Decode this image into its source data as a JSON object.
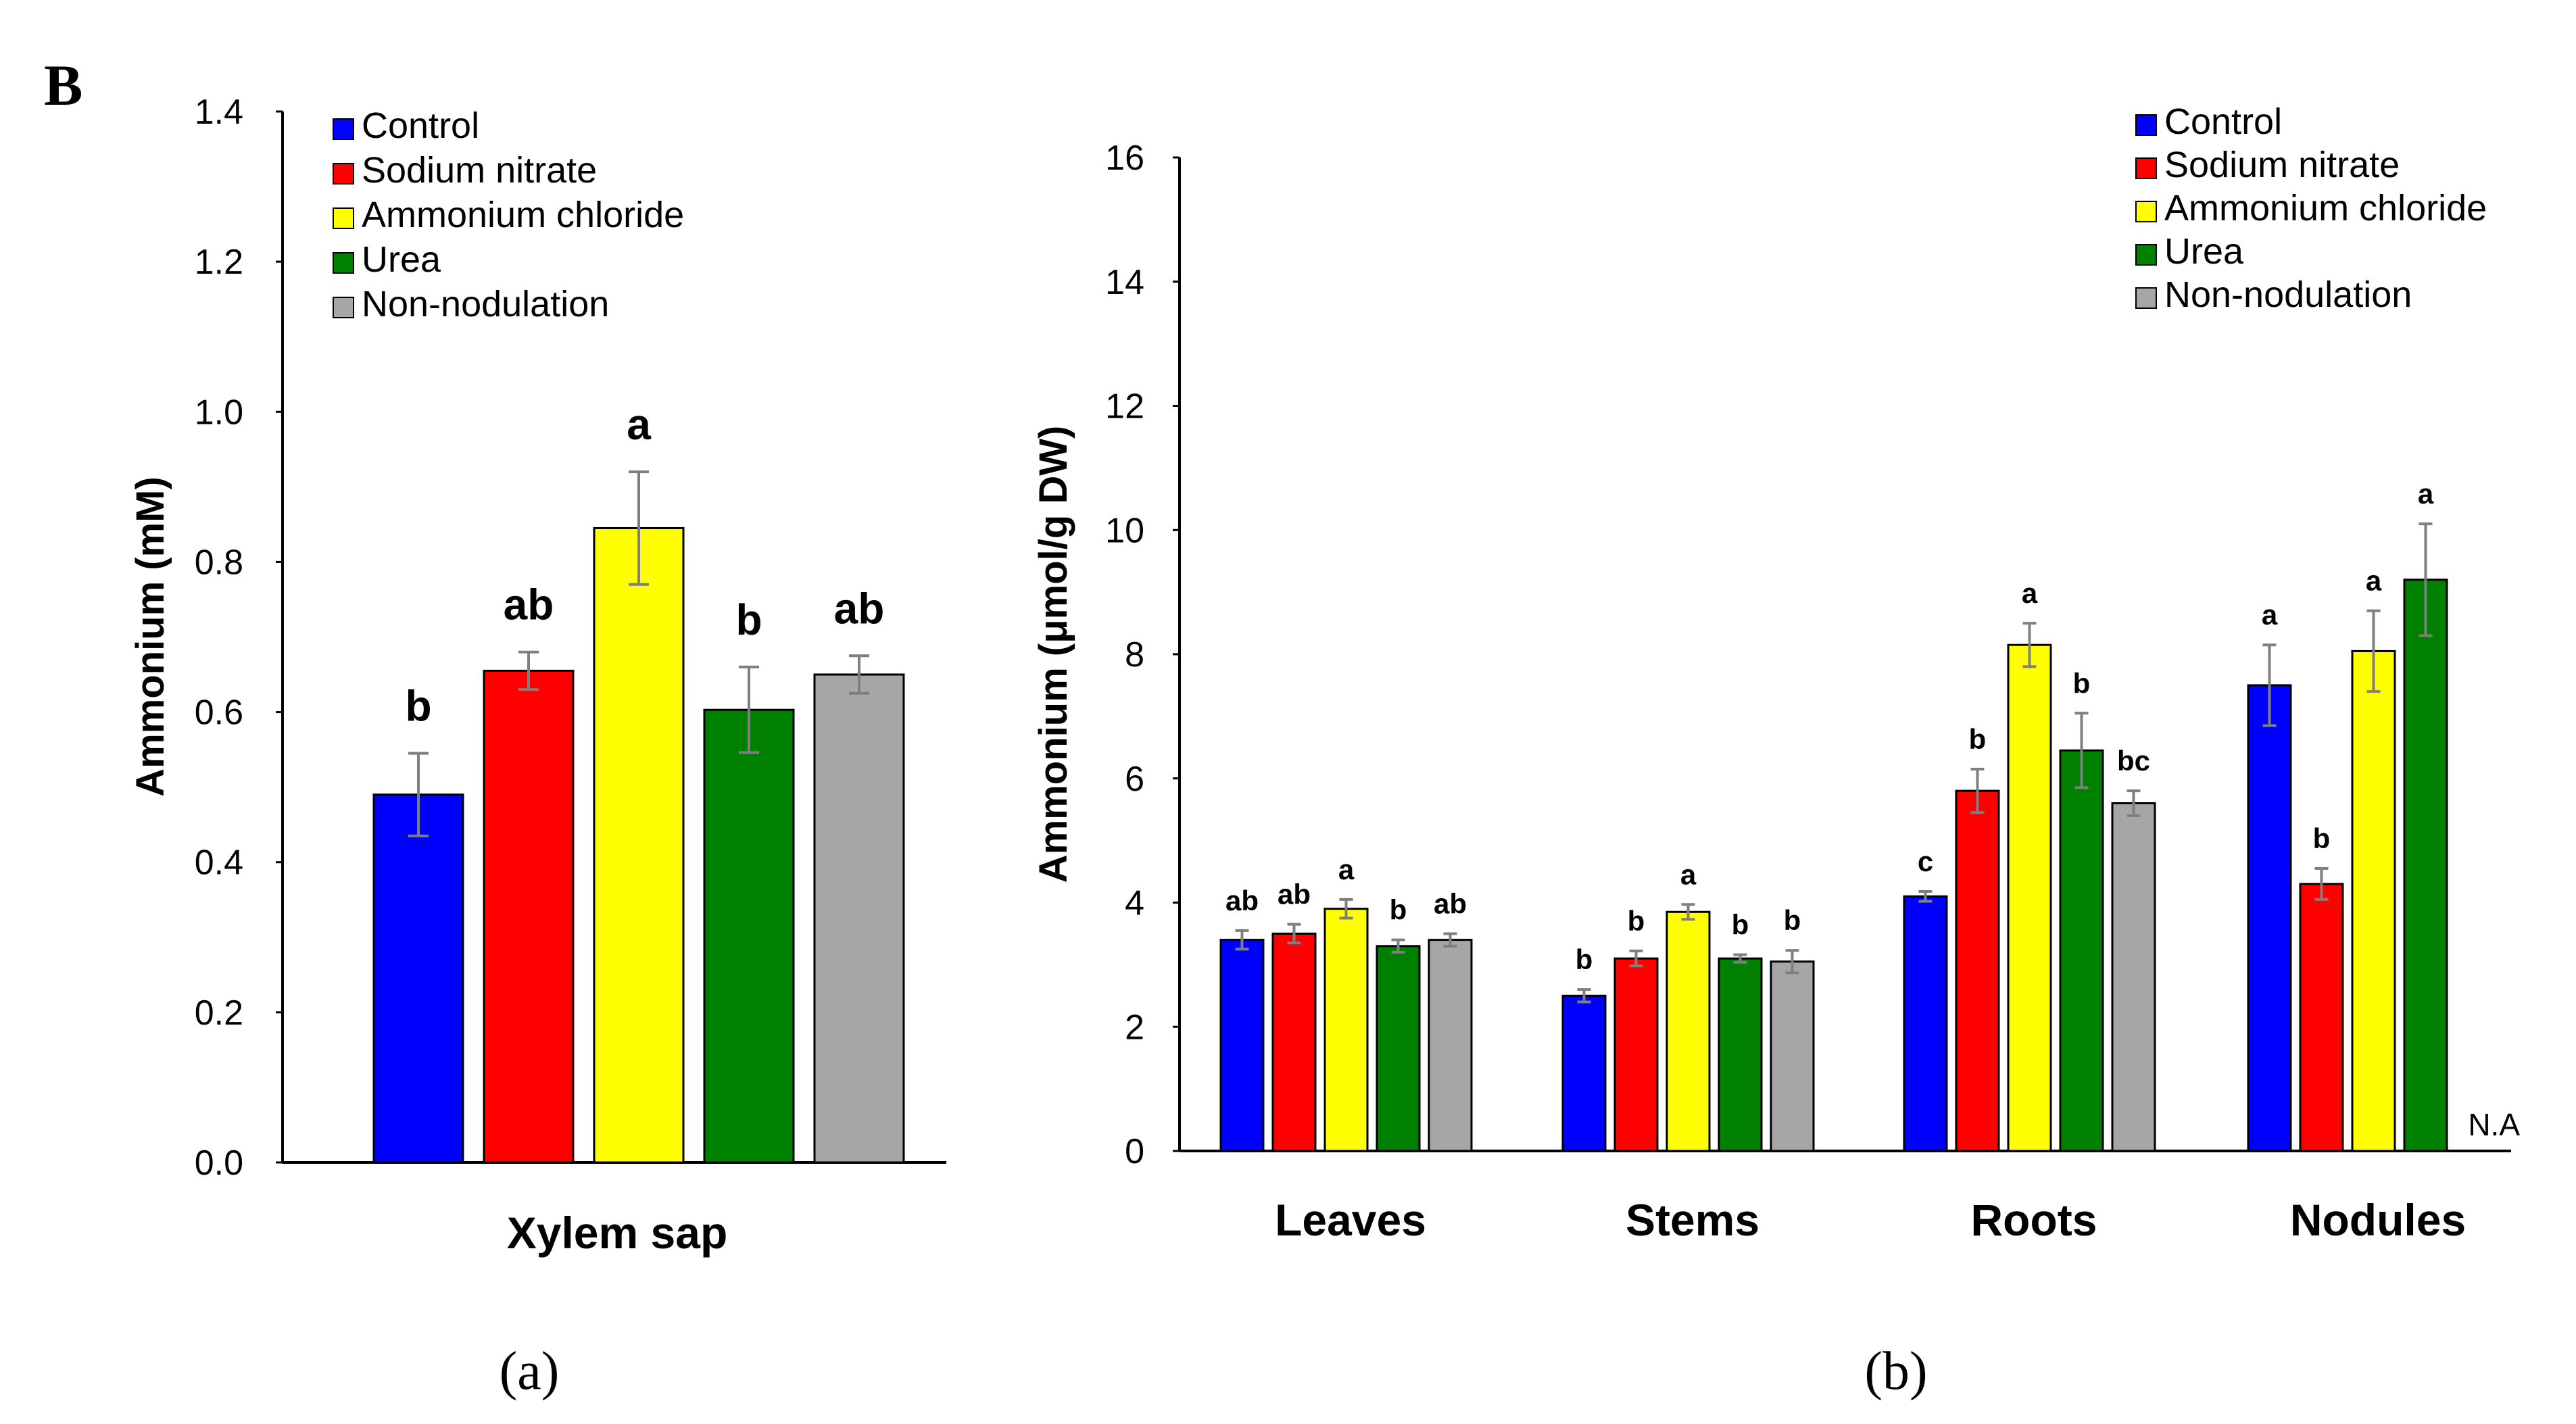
{
  "figure": {
    "panel_label": "B",
    "colors": {
      "Control": "#0000FF",
      "Sodium nitrate": "#FF0000",
      "Ammonium chloride": "#FFFF00",
      "Urea": "#008000",
      "Non-nodulation": "#A6A6A6",
      "error_bar": "#7F7F7F"
    }
  },
  "chart_data": [
    {
      "type": "bar",
      "subfigure_label": "(a)",
      "title": "",
      "xlabel": "Xylem sap",
      "ylabel": "Ammonium (mM)",
      "ylim": [
        0,
        1.4
      ],
      "yticks": [
        "0.0",
        "0.2",
        "0.4",
        "0.6",
        "0.8",
        "1.0",
        "1.2",
        "1.4"
      ],
      "legend": [
        "Control",
        "Sodium nitrate",
        "Ammonium chloride",
        "Urea",
        "Non-nodulation"
      ],
      "legend_position": "top-left",
      "categories": [
        "Xylem sap"
      ],
      "series": [
        {
          "name": "Control",
          "values": [
            0.49
          ],
          "errors": [
            0.055
          ],
          "letters": [
            "b"
          ]
        },
        {
          "name": "Sodium nitrate",
          "values": [
            0.655
          ],
          "errors": [
            0.025
          ],
          "letters": [
            "ab"
          ]
        },
        {
          "name": "Ammonium chloride",
          "values": [
            0.845
          ],
          "errors": [
            0.075
          ],
          "letters": [
            "a"
          ]
        },
        {
          "name": "Urea",
          "values": [
            0.603
          ],
          "errors": [
            0.057
          ],
          "letters": [
            "b"
          ]
        },
        {
          "name": "Non-nodulation",
          "values": [
            0.65
          ],
          "errors": [
            0.025
          ],
          "letters": [
            "ab"
          ]
        }
      ]
    },
    {
      "type": "bar",
      "subfigure_label": "(b)",
      "title": "",
      "xlabel": "",
      "ylabel": "Ammonium (μmol/g DW)",
      "ylim": [
        0,
        16
      ],
      "yticks": [
        "0",
        "2",
        "4",
        "6",
        "8",
        "10",
        "12",
        "14",
        "16"
      ],
      "legend": [
        "Control",
        "Sodium nitrate",
        "Ammonium chloride",
        "Urea",
        "Non-nodulation"
      ],
      "legend_position": "top-right",
      "categories": [
        "Leaves",
        "Stems",
        "Roots",
        "Nodules"
      ],
      "not_available_label": "N.A",
      "series": [
        {
          "name": "Control",
          "values": [
            3.4,
            2.5,
            4.1,
            7.5
          ],
          "errors": [
            0.15,
            0.1,
            0.08,
            0.65
          ],
          "letters": [
            "ab",
            "b",
            "c",
            "a"
          ]
        },
        {
          "name": "Sodium nitrate",
          "values": [
            3.5,
            3.1,
            5.8,
            4.3
          ],
          "errors": [
            0.15,
            0.12,
            0.35,
            0.25
          ],
          "letters": [
            "ab",
            "b",
            "b",
            "b"
          ]
        },
        {
          "name": "Ammonium chloride",
          "values": [
            3.9,
            3.85,
            8.15,
            8.05
          ],
          "errors": [
            0.15,
            0.12,
            0.35,
            0.65
          ],
          "letters": [
            "a",
            "a",
            "a",
            "a"
          ]
        },
        {
          "name": "Urea",
          "values": [
            3.3,
            3.1,
            6.45,
            9.2
          ],
          "errors": [
            0.1,
            0.06,
            0.6,
            0.9
          ],
          "letters": [
            "b",
            "b",
            "b",
            "a"
          ]
        },
        {
          "name": "Non-nodulation",
          "values": [
            3.4,
            3.05,
            5.6,
            null
          ],
          "errors": [
            0.1,
            0.18,
            0.2,
            null
          ],
          "letters": [
            "ab",
            "b",
            "bc",
            ""
          ]
        }
      ]
    }
  ]
}
